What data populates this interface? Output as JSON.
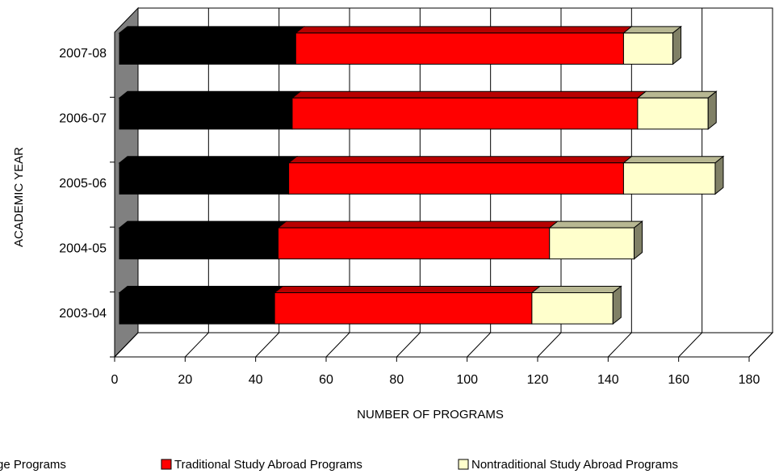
{
  "chart_data": {
    "type": "bar",
    "orientation": "horizontal",
    "stacked": true,
    "three_d": true,
    "title": "",
    "xlabel": "NUMBER OF PROGRAMS",
    "ylabel": "ACADEMIC YEAR",
    "xlim": [
      0,
      180
    ],
    "xticks": [
      "0",
      "20",
      "40",
      "60",
      "80",
      "100",
      "120",
      "140",
      "160",
      "180"
    ],
    "categories": [
      "2003-04",
      "2004-05",
      "2005-06",
      "2006-07",
      "2007-08"
    ],
    "series": [
      {
        "name": "Exchange Programs",
        "values": [
          44,
          45,
          48,
          49,
          50
        ],
        "color": "#000000"
      },
      {
        "name": "Traditional Study Abroad Programs",
        "values": [
          73,
          77,
          95,
          98,
          93
        ],
        "color": "#ff0000"
      },
      {
        "name": "Nontraditional Study Abroad Programs",
        "values": [
          23,
          24,
          26,
          20,
          14
        ],
        "color": "#ffffcc"
      }
    ],
    "grid": true,
    "legend_position": "bottom",
    "wall_color": "#808080"
  }
}
